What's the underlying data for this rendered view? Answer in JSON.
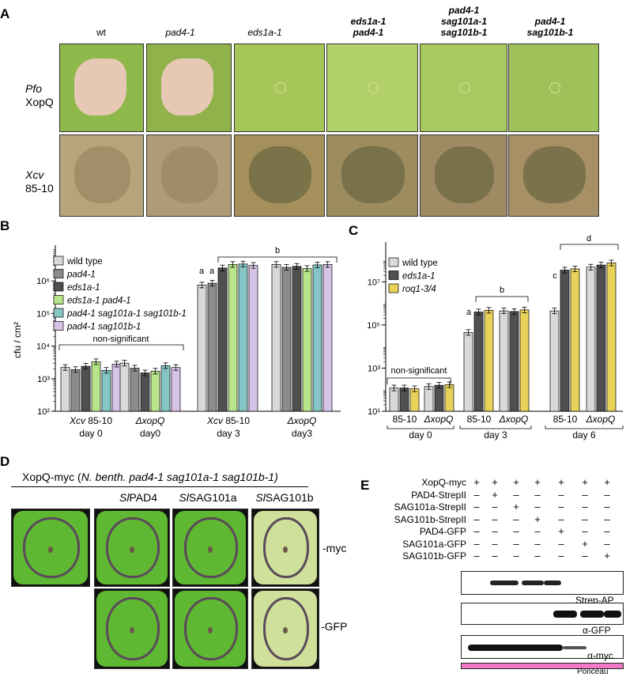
{
  "panelA": {
    "letter": "A",
    "columns": [
      {
        "lines": [
          "wt"
        ],
        "italic": false,
        "bold": false
      },
      {
        "lines": [
          "pad4-1"
        ],
        "italic": true,
        "bold": false
      },
      {
        "lines": [
          "eds1a-1"
        ],
        "italic": true,
        "bold": false
      },
      {
        "lines": [
          "eds1a-1",
          "pad4-1"
        ],
        "italic": true,
        "bold": true
      },
      {
        "lines": [
          "pad4-1",
          "sag101a-1",
          "sag101b-1"
        ],
        "italic": true,
        "bold": true
      },
      {
        "lines": [
          "pad4-1",
          "sag101b-1"
        ],
        "italic": true,
        "bold": true
      }
    ],
    "row1_label_italic": "Pfo",
    "row1_label": "XopQ",
    "row2_label_italic": "Xcv",
    "row2_label": "85-10"
  },
  "panelB": {
    "letter": "B",
    "ylabel": "cfu / cm²",
    "legend": [
      "wild type",
      "pad4-1",
      "eds1a-1",
      "eds1a-1 pad4-1",
      "pad4-1 sag101a-1 sag101b-1",
      "pad4-1 sag101b-1"
    ],
    "colors": [
      "#d9d9d9",
      "#8c8c8c",
      "#505050",
      "#b8e58c",
      "#86c5c5",
      "#d7c3e8"
    ],
    "groups": [
      {
        "line1_it": "Xcv",
        "line1": " 85-10",
        "line2": "day 0"
      },
      {
        "line1_it": "ΔxopQ",
        "line1": "",
        "line2": "day0"
      },
      {
        "line1_it": "Xcv",
        "line1": " 85-10",
        "line2": "day 3"
      },
      {
        "line1_it": "ΔxopQ",
        "line1": "",
        "line2": "day3"
      }
    ],
    "sig_labels": {
      "ns": "non-significant",
      "a1": "a",
      "a2": "a",
      "b": "b"
    },
    "yticks": [
      "10²",
      "10³",
      "10⁴",
      "10⁵",
      "10⁶"
    ]
  },
  "panelC": {
    "letter": "C",
    "legend": [
      "wild type",
      "eds1a-1",
      "roq1-3/4"
    ],
    "colors": [
      "#d9d9d9",
      "#505050",
      "#e8d25a"
    ],
    "xticks": [
      "85-10",
      "ΔxopQ",
      "85-10",
      "ΔxopQ",
      "85-10",
      "ΔxopQ"
    ],
    "days": [
      "day 0",
      "day 3",
      "day 6"
    ],
    "sig_labels": {
      "ns": "non-significant",
      "a": "a",
      "b": "b",
      "c": "c",
      "d": "d"
    },
    "yticks": [
      "10¹",
      "10³",
      "10⁵",
      "10⁷"
    ]
  },
  "panelD": {
    "letter": "D",
    "header_plain": "XopQ-myc (",
    "header_italic": "N. benth. pad4-1 sag101a-1 sag101b-1)",
    "columns": [
      {
        "it": "Sl",
        "txt": "PAD4"
      },
      {
        "it": "Sl",
        "txt": "SAG101a"
      },
      {
        "it": "Sl",
        "txt": "SAG101b"
      }
    ],
    "row_labels": [
      "-myc",
      "-GFP"
    ]
  },
  "panelE": {
    "letter": "E",
    "rows": [
      {
        "label": "XopQ-myc",
        "marks": [
          "+",
          "+",
          "+",
          "+",
          "+",
          "+",
          "+"
        ]
      },
      {
        "label": "PAD4-StrepII",
        "marks": [
          "–",
          "+",
          "–",
          "–",
          "–",
          "–",
          "–"
        ]
      },
      {
        "label": "SAG101a-StrepII",
        "marks": [
          "–",
          "–",
          "+",
          "–",
          "–",
          "–",
          "–"
        ]
      },
      {
        "label": "SAG101b-StrepII",
        "marks": [
          "–",
          "–",
          "–",
          "+",
          "–",
          "–",
          "–"
        ]
      },
      {
        "label": "PAD4-GFP",
        "marks": [
          "–",
          "–",
          "–",
          "–",
          "+",
          "–",
          "–"
        ]
      },
      {
        "label": "SAG101a-GFP",
        "marks": [
          "–",
          "–",
          "–",
          "–",
          "–",
          "+",
          "–"
        ]
      },
      {
        "label": "SAG101b-GFP",
        "marks": [
          "–",
          "–",
          "–",
          "–",
          "–",
          "–",
          "+"
        ]
      }
    ],
    "blots": [
      "Strep-AP",
      "α-GFP",
      "α-myc",
      "Ponceau"
    ]
  },
  "chart_data": [
    {
      "type": "bar",
      "panel": "B",
      "scale": "log",
      "ylabel": "cfu / cm²",
      "ylim": [
        100,
        10000000
      ],
      "categories": [
        "Xcv 85-10 day 0",
        "ΔxopQ day0",
        "Xcv 85-10 day 3",
        "ΔxopQ day3"
      ],
      "series": [
        {
          "name": "wild type",
          "values": [
            2200,
            3000,
            750000,
            3200000
          ]
        },
        {
          "name": "pad4-1",
          "values": [
            1900,
            2100,
            850000,
            2600000
          ]
        },
        {
          "name": "eds1a-1",
          "values": [
            2400,
            1500,
            2500000,
            2800000
          ]
        },
        {
          "name": "eds1a-1 pad4-1",
          "values": [
            3300,
            1700,
            3200000,
            2400000
          ]
        },
        {
          "name": "pad4-1 sag101a-1 sag101b-1",
          "values": [
            1800,
            2500,
            3300000,
            3100000
          ]
        },
        {
          "name": "pad4-1 sag101b-1",
          "values": [
            2800,
            2200,
            3000000,
            3200000
          ]
        }
      ]
    },
    {
      "type": "bar",
      "panel": "C",
      "scale": "log",
      "ylim": [
        10,
        500000000
      ],
      "categories": [
        "85-10 day 0",
        "ΔxopQ day 0",
        "85-10 day 3",
        "ΔxopQ day 3",
        "85-10 day 6",
        "ΔxopQ day 6"
      ],
      "series": [
        {
          "name": "wild type",
          "values": [
            120,
            140,
            45000,
            450000,
            450000,
            48000000
          ]
        },
        {
          "name": "eds1a-1",
          "values": [
            120,
            160,
            400000,
            420000,
            35000000,
            60000000
          ]
        },
        {
          "name": "roq1-3/4",
          "values": [
            110,
            170,
            480000,
            500000,
            40000000,
            75000000
          ]
        }
      ]
    }
  ]
}
